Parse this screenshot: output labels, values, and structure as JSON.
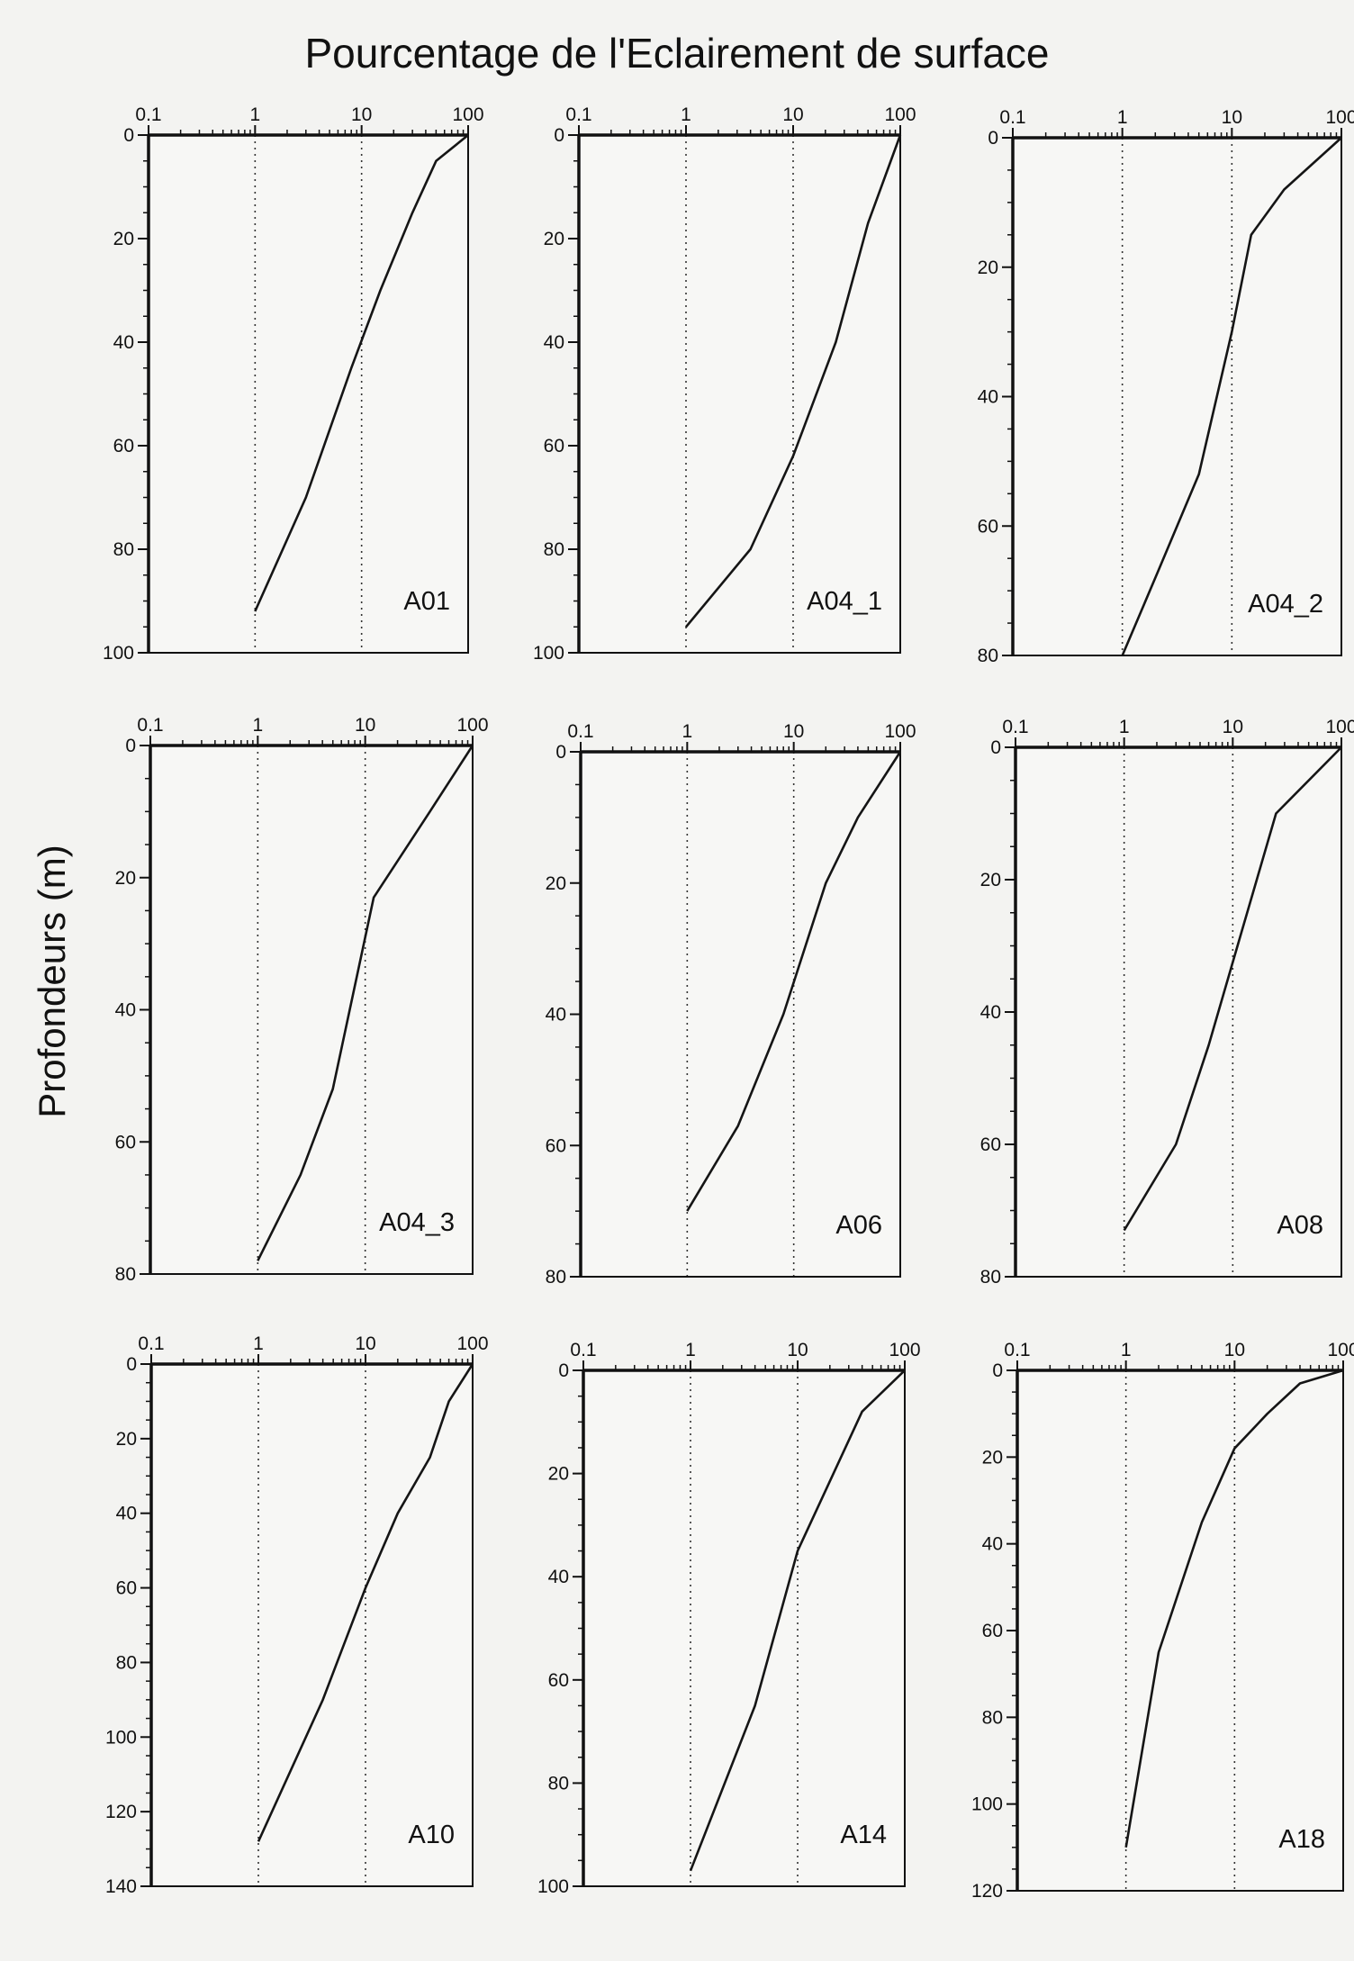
{
  "title": "Pourcentage de l'Eclairement de surface",
  "ylabel": "Profondeurs (m)",
  "chart_data": [
    {
      "type": "line",
      "label": "A01",
      "xscale": "log",
      "xlim": [
        0.1,
        100
      ],
      "xticks": [
        "0.1",
        "1",
        "10",
        "100"
      ],
      "ylim": [
        0,
        100
      ],
      "yticks": [
        0,
        20,
        40,
        60,
        80,
        100
      ],
      "y_inverted": true,
      "grid_x": true,
      "x": [
        100,
        50,
        30,
        15,
        8,
        3,
        1
      ],
      "y": [
        0,
        5,
        15,
        30,
        45,
        70,
        92
      ]
    },
    {
      "type": "line",
      "label": "A04_1",
      "xscale": "log",
      "xlim": [
        0.1,
        100
      ],
      "xticks": [
        "0.1",
        "1",
        "10",
        "100"
      ],
      "ylim": [
        0,
        100
      ],
      "yticks": [
        0,
        20,
        40,
        60,
        80,
        100
      ],
      "y_inverted": true,
      "grid_x": true,
      "x": [
        100,
        50,
        25,
        10,
        4,
        1
      ],
      "y": [
        0,
        17,
        40,
        62,
        80,
        95
      ]
    },
    {
      "type": "line",
      "label": "A04_2",
      "xscale": "log",
      "xlim": [
        0.1,
        100
      ],
      "xticks": [
        "0.1",
        "1",
        "10",
        "100"
      ],
      "ylim": [
        0,
        80
      ],
      "yticks": [
        0,
        20,
        40,
        60,
        80
      ],
      "y_inverted": true,
      "grid_x": true,
      "x": [
        100,
        30,
        15,
        10,
        5,
        2,
        1
      ],
      "y": [
        0,
        8,
        15,
        30,
        52,
        68,
        80
      ]
    },
    {
      "type": "line",
      "label": "A04_3",
      "xscale": "log",
      "xlim": [
        0.1,
        100
      ],
      "xticks": [
        "0.1",
        "1",
        "10",
        "100"
      ],
      "ylim": [
        0,
        80
      ],
      "yticks": [
        0,
        20,
        40,
        60,
        80
      ],
      "y_inverted": true,
      "grid_x": true,
      "x": [
        100,
        40,
        12,
        5,
        2.5,
        1
      ],
      "y": [
        0,
        10,
        23,
        52,
        65,
        78
      ]
    },
    {
      "type": "line",
      "label": "A06",
      "xscale": "log",
      "xlim": [
        0.1,
        100
      ],
      "xticks": [
        "0.1",
        "1",
        "10",
        "100"
      ],
      "ylim": [
        0,
        80
      ],
      "yticks": [
        0,
        20,
        40,
        60,
        80
      ],
      "y_inverted": true,
      "grid_x": true,
      "x": [
        100,
        40,
        20,
        8,
        3,
        1
      ],
      "y": [
        0,
        10,
        20,
        40,
        57,
        70
      ]
    },
    {
      "type": "line",
      "label": "A08",
      "xscale": "log",
      "xlim": [
        0.1,
        100
      ],
      "xticks": [
        "0.1",
        "1",
        "10",
        "100"
      ],
      "ylim": [
        0,
        80
      ],
      "yticks": [
        0,
        20,
        40,
        60,
        80
      ],
      "y_inverted": true,
      "grid_x": true,
      "x": [
        100,
        25,
        12,
        6,
        3,
        1
      ],
      "y": [
        0,
        10,
        28,
        45,
        60,
        73
      ]
    },
    {
      "type": "line",
      "label": "A10",
      "xscale": "log",
      "xlim": [
        0.1,
        100
      ],
      "xticks": [
        "0.1",
        "1",
        "10",
        "100"
      ],
      "ylim": [
        0,
        140
      ],
      "yticks": [
        0,
        20,
        40,
        60,
        80,
        100,
        120,
        140
      ],
      "y_inverted": true,
      "grid_x": true,
      "x": [
        100,
        60,
        40,
        20,
        10,
        4,
        1
      ],
      "y": [
        0,
        10,
        25,
        40,
        60,
        90,
        128
      ]
    },
    {
      "type": "line",
      "label": "A14",
      "xscale": "log",
      "xlim": [
        0.1,
        100
      ],
      "xticks": [
        "0.1",
        "1",
        "10",
        "100"
      ],
      "ylim": [
        0,
        100
      ],
      "yticks": [
        0,
        20,
        40,
        60,
        80,
        100
      ],
      "y_inverted": true,
      "grid_x": true,
      "x": [
        100,
        40,
        10,
        4,
        1
      ],
      "y": [
        0,
        8,
        35,
        65,
        97
      ]
    },
    {
      "type": "line",
      "label": "A18",
      "xscale": "log",
      "xlim": [
        0.1,
        100
      ],
      "xticks": [
        "0.1",
        "1",
        "10",
        "100"
      ],
      "ylim": [
        0,
        120
      ],
      "yticks": [
        0,
        20,
        40,
        60,
        80,
        100,
        120
      ],
      "y_inverted": true,
      "grid_x": true,
      "x": [
        100,
        40,
        20,
        10,
        5,
        2,
        1
      ],
      "y": [
        0,
        3,
        10,
        18,
        35,
        65,
        110
      ]
    }
  ]
}
